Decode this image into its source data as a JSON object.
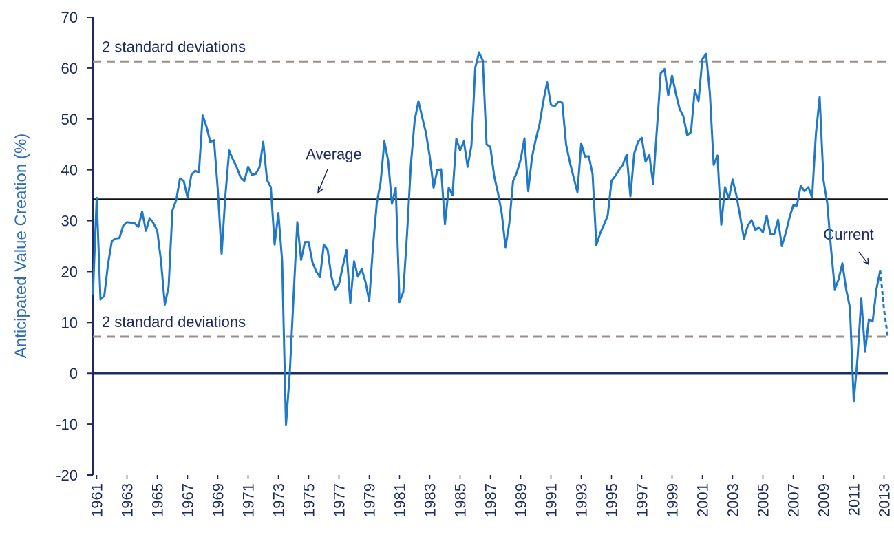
{
  "chart_data": {
    "type": "line",
    "y_label": "Anticipated Value Creation (%)",
    "xlim": [
      1960.75,
      2013.25
    ],
    "ylim": [
      -20,
      70
    ],
    "yticks": [
      -20,
      -10,
      0,
      10,
      20,
      30,
      40,
      50,
      60,
      70
    ],
    "xticks": [
      1961,
      1963,
      1965,
      1967,
      1969,
      1971,
      1973,
      1975,
      1977,
      1979,
      1981,
      1983,
      1985,
      1987,
      1989,
      1991,
      1993,
      1995,
      1997,
      1999,
      2001,
      2003,
      2005,
      2007,
      2009,
      2011,
      2013
    ],
    "hlines": [
      {
        "value": 61.3,
        "label": "2 standard deviations",
        "color": "#9a9088",
        "style": "dashed"
      },
      {
        "value": 7.2,
        "label": "2 standard deviations",
        "color": "#9a9088",
        "style": "dashed"
      },
      {
        "value": 34.2,
        "label": "Average",
        "color": "#111111",
        "style": "solid"
      },
      {
        "value": 0,
        "color": "#1d2b5e",
        "style": "solid"
      }
    ],
    "annotations": [
      {
        "text": "Current"
      }
    ],
    "series": [
      {
        "color": "#1f78c8",
        "style": "solid",
        "x": [
          1960.75,
          1961,
          1961.25,
          1961.5,
          1961.75,
          1962,
          1962.25,
          1962.5,
          1962.75,
          1963,
          1963.25,
          1963.5,
          1963.75,
          1964,
          1964.25,
          1964.5,
          1964.75,
          1965,
          1965.25,
          1965.5,
          1965.75,
          1966,
          1966.25,
          1966.5,
          1966.75,
          1967,
          1967.25,
          1967.5,
          1967.75,
          1968,
          1968.25,
          1968.5,
          1968.75,
          1969,
          1969.25,
          1969.5,
          1969.75,
          1970,
          1970.25,
          1970.5,
          1970.75,
          1971,
          1971.25,
          1971.5,
          1971.75,
          1972,
          1972.25,
          1972.5,
          1972.75,
          1973,
          1973.25,
          1973.5,
          1973.75,
          1974,
          1974.25,
          1974.5,
          1974.75,
          1975,
          1975.25,
          1975.5,
          1975.75,
          1976,
          1976.25,
          1976.5,
          1976.75,
          1977,
          1977.25,
          1977.5,
          1977.75,
          1978,
          1978.25,
          1978.5,
          1978.75,
          1979,
          1979.25,
          1979.5,
          1979.75,
          1980,
          1980.25,
          1980.5,
          1980.75,
          1981,
          1981.25,
          1981.5,
          1981.75,
          1982,
          1982.25,
          1982.5,
          1982.75,
          1983,
          1983.25,
          1983.5,
          1983.75,
          1984,
          1984.25,
          1984.5,
          1984.75,
          1985,
          1985.25,
          1985.5,
          1985.75,
          1986,
          1986.25,
          1986.5,
          1986.75,
          1987,
          1987.25,
          1987.5,
          1987.75,
          1988,
          1988.25,
          1988.5,
          1988.75,
          1989,
          1989.25,
          1989.5,
          1989.75,
          1990,
          1990.25,
          1990.5,
          1990.75,
          1991,
          1991.25,
          1991.5,
          1991.75,
          1992,
          1992.25,
          1992.5,
          1992.75,
          1993,
          1993.25,
          1993.5,
          1993.75,
          1994,
          1994.25,
          1994.5,
          1994.75,
          1995,
          1995.25,
          1995.5,
          1995.75,
          1996,
          1996.25,
          1996.5,
          1996.75,
          1997,
          1997.25,
          1997.5,
          1997.75,
          1998,
          1998.25,
          1998.5,
          1998.75,
          1999,
          1999.25,
          1999.5,
          1999.75,
          2000,
          2000.25,
          2000.5,
          2000.75,
          2001,
          2001.25,
          2001.5,
          2001.75,
          2002,
          2002.25,
          2002.5,
          2002.75,
          2003,
          2003.25,
          2003.5,
          2003.75,
          2004,
          2004.25,
          2004.5,
          2004.75,
          2005,
          2005.25,
          2005.5,
          2005.75,
          2006,
          2006.25,
          2006.5,
          2006.75,
          2007,
          2007.25,
          2007.5,
          2007.75,
          2008,
          2008.25,
          2008.5,
          2008.75,
          2009,
          2009.25,
          2009.5,
          2009.75,
          2010,
          2010.25,
          2010.5,
          2010.75,
          2011,
          2011.25,
          2011.5,
          2011.75,
          2012,
          2012.25,
          2012.5,
          2012.75
        ],
        "values": [
          15.5,
          34.5,
          14.5,
          15.2,
          21.5,
          26,
          26.5,
          26.6,
          29,
          29.7,
          29.6,
          29.5,
          28.8,
          31.8,
          28,
          30.5,
          29.5,
          28,
          22,
          13.5,
          17,
          32,
          34,
          38.3,
          37.8,
          34.5,
          39,
          39.8,
          39.5,
          50.7,
          48.5,
          45.5,
          45.8,
          36,
          23.5,
          35,
          43.8,
          42,
          40.5,
          38.5,
          37.8,
          40.6,
          39,
          39.2,
          40.5,
          45.5,
          38,
          36.6,
          25.3,
          31.5,
          22,
          -10.2,
          0,
          15,
          29.7,
          22.3,
          25.8,
          25.8,
          21.8,
          20,
          18.9,
          25.3,
          24.3,
          19,
          16.5,
          17.5,
          21,
          24.2,
          13.8,
          22,
          19,
          20.5,
          18,
          14.2,
          25,
          33.5,
          37.5,
          45.6,
          41.8,
          33.3,
          36.5,
          14,
          16,
          27.5,
          41,
          49.7,
          53.5,
          50.3,
          47.2,
          42.5,
          36.5,
          40,
          40.1,
          29.3,
          36.5,
          35,
          46.1,
          43.8,
          45.6,
          40.6,
          44.8,
          60,
          63.1,
          61.5,
          45,
          44.5,
          38.8,
          35.5,
          31.5,
          24.8,
          29.5,
          37.8,
          39.5,
          42,
          46.2,
          35.8,
          42.5,
          46,
          49,
          53.5,
          57.2,
          52.8,
          52.5,
          53.4,
          53.2,
          45,
          41.5,
          38.5,
          35.6,
          45.2,
          42.6,
          42.7,
          39.2,
          25.2,
          27.5,
          29.2,
          31,
          37.8,
          38.8,
          40,
          41,
          43,
          34.8,
          43.2,
          45.5,
          46.3,
          41.6,
          42.9,
          37.3,
          48,
          59,
          59.8,
          54.6,
          58.5,
          55,
          52,
          50.5,
          46.8,
          47.4,
          55.7,
          53.5,
          61.8,
          62.8,
          55,
          41,
          42.8,
          29.2,
          36.6,
          34.3,
          38.1,
          35,
          30.8,
          26.4,
          29,
          30.1,
          28.2,
          28.7,
          27.7,
          31,
          27.4,
          27.4,
          30.2,
          25,
          27.5,
          30.5,
          33,
          33,
          36.9,
          35.8,
          36.6,
          34.6,
          47,
          54.3,
          38,
          33.5,
          24.5,
          16.5,
          18.5,
          21.6,
          16.5,
          12.9,
          -5.5,
          3,
          14.7,
          4.2,
          10.6,
          10.2,
          16.5,
          20.3
        ]
      },
      {
        "color": "#1f78c8",
        "style": "dashed",
        "x": [
          2012.75,
          2013,
          2013.25
        ],
        "values": [
          20.3,
          12.5,
          7.2
        ]
      }
    ]
  }
}
